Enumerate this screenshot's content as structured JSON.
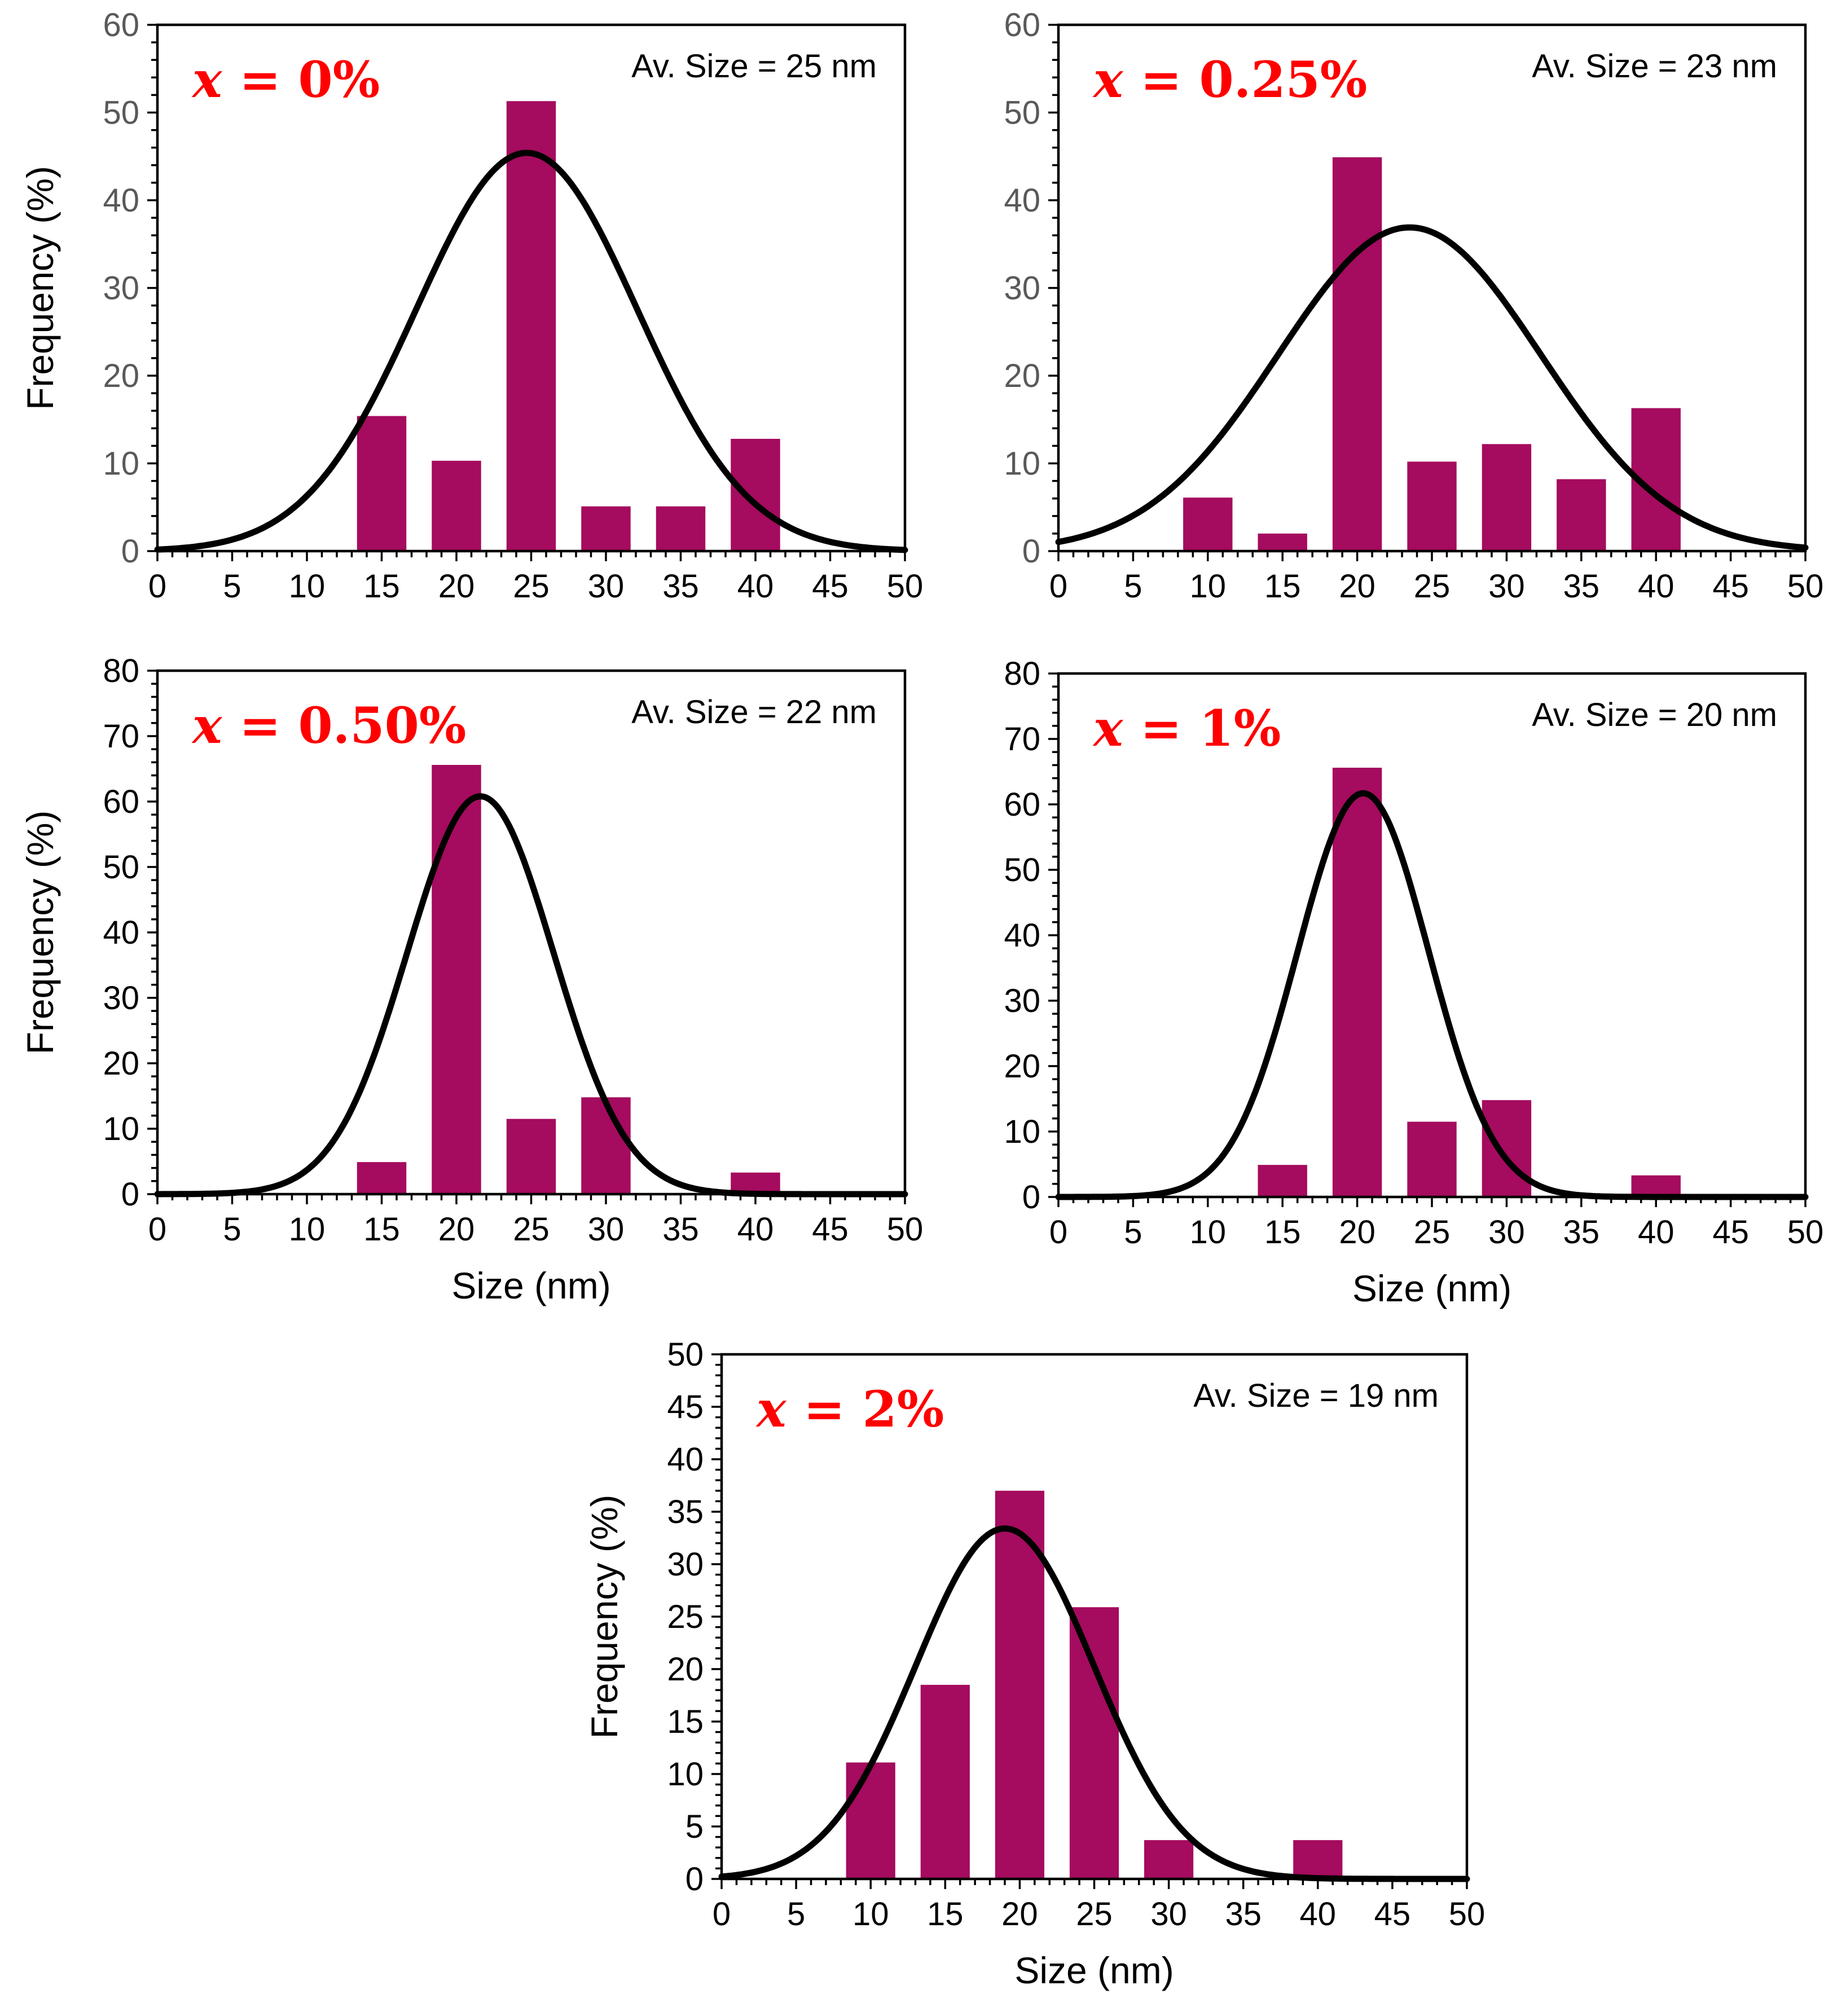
{
  "colors": {
    "bar": "#A50B5E",
    "curve": "#000000",
    "label": "#FF0000",
    "ytick_first_row": "#595959"
  },
  "chart_data": [
    {
      "type": "bar",
      "label_html": [
        "x",
        " = 0%"
      ],
      "label": "x = 0%",
      "annotation": "Av. Size = 25 nm",
      "xlabel": "",
      "ylabel": "Frequency (%)",
      "xlim": [
        0,
        50
      ],
      "ylim": [
        0,
        60
      ],
      "ystep": 10,
      "xticks": [
        "0",
        "5",
        "10",
        "15",
        "20",
        "25",
        "30",
        "35",
        "40",
        "45",
        "50"
      ],
      "yticks": [
        "0",
        "10",
        "20",
        "30",
        "40",
        "50",
        "60"
      ],
      "bar_x": [
        15,
        20,
        25,
        30,
        35,
        40
      ],
      "values": [
        15.4,
        10.3,
        51.3,
        5.1,
        5.1,
        12.8
      ],
      "bar_width": 3.3,
      "fit": {
        "type": "gaussian",
        "mean": 24.7,
        "sigma": 7.4,
        "peak": 45.4
      }
    },
    {
      "type": "bar",
      "label_html": [
        "x",
        " = 0.25%"
      ],
      "label": "x = 0.25%",
      "annotation": "Av. Size = 23 nm",
      "xlabel": "",
      "ylabel": "",
      "xlim": [
        0,
        50
      ],
      "ylim": [
        0,
        60
      ],
      "ystep": 10,
      "xticks": [
        "0",
        "5",
        "10",
        "15",
        "20",
        "25",
        "30",
        "35",
        "40",
        "45",
        "50"
      ],
      "yticks": [
        "0",
        "10",
        "20",
        "30",
        "40",
        "50",
        "60"
      ],
      "bar_x": [
        10,
        15,
        20,
        25,
        30,
        35,
        40
      ],
      "values": [
        6.1,
        2.0,
        44.9,
        10.2,
        12.2,
        8.2,
        16.3
      ],
      "bar_width": 3.3,
      "fit": {
        "type": "gaussian",
        "mean": 23.5,
        "sigma": 8.8,
        "peak": 36.9
      }
    },
    {
      "type": "bar",
      "label_html": [
        "x",
        " = 0.50%"
      ],
      "label": "x = 0.50%",
      "annotation": "Av. Size = 22 nm",
      "xlabel": "Size (nm)",
      "ylabel": "Frequency (%)",
      "xlim": [
        0,
        50
      ],
      "ylim": [
        0,
        80
      ],
      "ystep": 10,
      "xticks": [
        "0",
        "5",
        "10",
        "15",
        "20",
        "25",
        "30",
        "35",
        "40",
        "45",
        "50"
      ],
      "yticks": [
        "0",
        "10",
        "20",
        "30",
        "40",
        "50",
        "60",
        "70",
        "80"
      ],
      "bar_x": [
        15,
        20,
        25,
        30,
        40
      ],
      "values": [
        4.9,
        65.6,
        11.5,
        14.8,
        3.3
      ],
      "bar_width": 3.3,
      "fit": {
        "type": "gaussian",
        "mean": 21.6,
        "sigma": 4.9,
        "peak": 60.8
      }
    },
    {
      "type": "bar",
      "label_html": [
        "x",
        " = 1%"
      ],
      "label": "x = 1%",
      "annotation": "Av. Size = 20 nm",
      "xlabel": "Size (nm)",
      "ylabel": "",
      "xlim": [
        0,
        50
      ],
      "ylim": [
        0,
        80
      ],
      "ystep": 10,
      "xticks": [
        "0",
        "5",
        "10",
        "15",
        "20",
        "25",
        "30",
        "35",
        "40",
        "45",
        "50"
      ],
      "yticks": [
        "0",
        "10",
        "20",
        "30",
        "40",
        "50",
        "60",
        "70",
        "80"
      ],
      "bar_x": [
        15,
        20,
        25,
        30,
        40
      ],
      "values": [
        4.9,
        65.6,
        11.5,
        14.8,
        3.3
      ],
      "bar_width": 3.3,
      "fit": {
        "type": "gaussian",
        "mean": 20.4,
        "sigma": 4.4,
        "peak": 61.7
      }
    },
    {
      "type": "bar",
      "label_html": [
        "x",
        " = 2%"
      ],
      "label": "x = 2%",
      "annotation": "Av. Size = 19 nm",
      "xlabel": "Size (nm)",
      "ylabel": "Frequency (%)",
      "xlim": [
        0,
        50
      ],
      "ylim": [
        0,
        50
      ],
      "ystep": 5,
      "xticks": [
        "0",
        "5",
        "10",
        "15",
        "20",
        "25",
        "30",
        "35",
        "40",
        "45",
        "50"
      ],
      "yticks": [
        "0",
        "5",
        "10",
        "15",
        "20",
        "25",
        "30",
        "35",
        "40",
        "45",
        "50"
      ],
      "bar_x": [
        10,
        15,
        20,
        25,
        30,
        40
      ],
      "values": [
        11.1,
        18.5,
        37.0,
        25.9,
        3.7,
        3.7
      ],
      "bar_width": 3.3,
      "fit": {
        "type": "gaussian",
        "mean": 19.0,
        "sigma": 6.0,
        "peak": 33.4
      }
    }
  ]
}
